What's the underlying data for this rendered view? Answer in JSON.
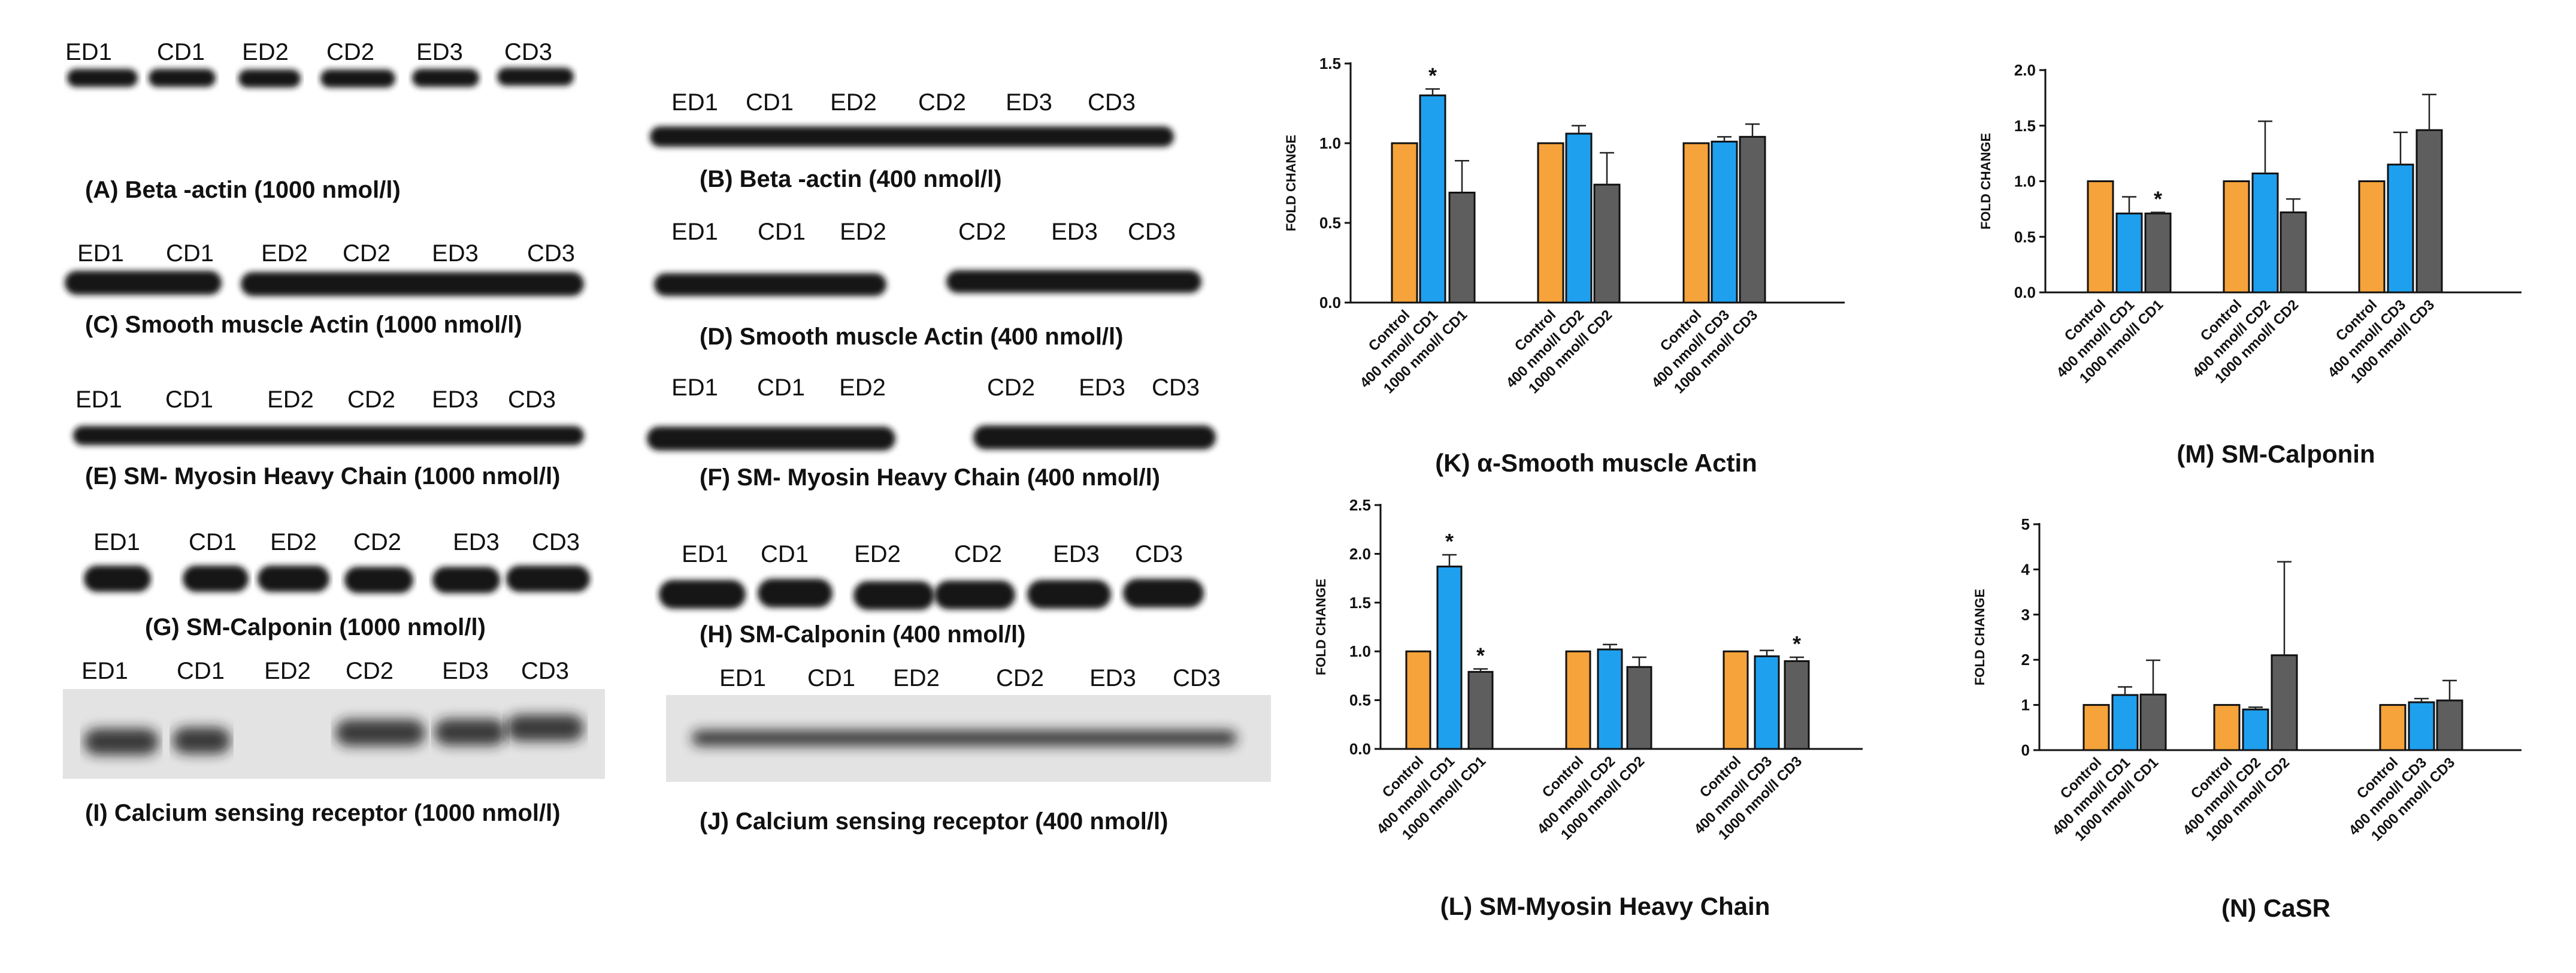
{
  "blots": [
    {
      "id": "A",
      "lanes": [
        "ED1",
        "CD1",
        "ED2",
        "CD2",
        "ED3",
        "CD3"
      ],
      "caption": "(A) Beta -actin (1000 nmol/l)",
      "band": "beta_a"
    },
    {
      "id": "B",
      "lanes": [
        "ED1",
        "CD1",
        "ED2",
        "CD2",
        "ED3",
        "CD3"
      ],
      "caption": "(B) Beta -actin (400 nmol/l)",
      "band": "beta_b"
    },
    {
      "id": "C",
      "lanes": [
        "ED1",
        "CD1",
        "ED2",
        "CD2",
        "ED3",
        "CD3"
      ],
      "caption": "(C) Smooth muscle Actin (1000 nmol/l)",
      "band": "sma_c"
    },
    {
      "id": "D",
      "lanes": [
        "ED1",
        "CD1",
        "ED2",
        "CD2",
        "ED3",
        "CD3"
      ],
      "caption": "(D) Smooth muscle Actin (400 nmol/l)",
      "band": "sma_d"
    },
    {
      "id": "E",
      "lanes": [
        "ED1",
        "CD1",
        "ED2",
        "CD2",
        "ED3",
        "CD3"
      ],
      "caption": "(E) SM- Myosin Heavy Chain (1000 nmol/l)",
      "band": "mhc_e"
    },
    {
      "id": "F",
      "lanes": [
        "ED1",
        "CD1",
        "ED2",
        "CD2",
        "ED3",
        "CD3"
      ],
      "caption": "(F) SM- Myosin Heavy Chain (400 nmol/l)",
      "band": "mhc_f"
    },
    {
      "id": "G",
      "lanes": [
        "ED1",
        "CD1",
        "ED2",
        "CD2",
        "ED3",
        "CD3"
      ],
      "caption": "(G) SM-Calponin (1000 nmol/l)",
      "band": "calp_g"
    },
    {
      "id": "H",
      "lanes": [
        "ED1",
        "CD1",
        "ED2",
        "CD2",
        "ED3",
        "CD3"
      ],
      "caption": "(H) SM-Calponin (400 nmol/l)",
      "band": "calp_h"
    },
    {
      "id": "I",
      "lanes": [
        "ED1",
        "CD1",
        "ED2",
        "CD2",
        "ED3",
        "CD3"
      ],
      "caption": "(I) Calcium sensing receptor (1000 nmol/l)",
      "band": "casr_i"
    },
    {
      "id": "J",
      "lanes": [
        "ED1",
        "CD1",
        "ED2",
        "CD2",
        "ED3",
        "CD3"
      ],
      "caption": "(J) Calcium sensing receptor (400 nmol/l)",
      "band": "casr_j"
    }
  ],
  "chart_data": [
    {
      "id": "K",
      "type": "bar",
      "title": "(K) α-Smooth muscle Actin",
      "ylabel": "FOLD CHANGE",
      "ylim": [
        0,
        1.5
      ],
      "yticks": [
        "0.0",
        "0.5",
        "1.0",
        "1.5"
      ],
      "tick_values": [
        0,
        0.5,
        1.0,
        1.5
      ],
      "categories": [
        "Control",
        "400 nmol/l CD1",
        "1000 nmol/l CD1",
        "Control",
        "400 nmol/l CD2",
        "1000 nmol/l CD2",
        "Control",
        "400 nmol/l CD3",
        "1000 nmol/l CD3"
      ],
      "values": [
        1.0,
        1.3,
        0.69,
        1.0,
        1.06,
        0.74,
        1.0,
        1.01,
        1.04
      ],
      "errors": [
        0,
        0.04,
        0.2,
        0,
        0.05,
        0.2,
        0,
        0.03,
        0.08
      ],
      "significance": [
        "",
        "*",
        "",
        "",
        "",
        "",
        "",
        "",
        ""
      ],
      "colors": [
        "#f5a33a",
        "#1ea0ef",
        "#5e5e5e"
      ]
    },
    {
      "id": "M",
      "type": "bar",
      "title": "(M) SM-Calponin",
      "ylabel": "FOLD CHANGE",
      "ylim": [
        0,
        2.0
      ],
      "yticks": [
        "0.0",
        "0.5",
        "1.0",
        "1.5",
        "2.0"
      ],
      "tick_values": [
        0,
        0.5,
        1.0,
        1.5,
        2.0
      ],
      "categories": [
        "Control",
        "400 nmol/l CD1",
        "1000 nmol/l CD1",
        "Control",
        "400 nmol/l CD2",
        "1000 nmol/l CD2",
        "Control",
        "400 nmol/l CD3",
        "1000 nmol/l CD3"
      ],
      "values": [
        1.0,
        0.71,
        0.71,
        1.0,
        1.07,
        0.72,
        1.0,
        1.15,
        1.46
      ],
      "errors": [
        0,
        0.15,
        0.01,
        0,
        0.47,
        0.12,
        0,
        0.29,
        0.32
      ],
      "significance": [
        "",
        "",
        "*",
        "",
        "",
        "",
        "",
        "",
        ""
      ],
      "colors": [
        "#f5a33a",
        "#1ea0ef",
        "#5e5e5e"
      ]
    },
    {
      "id": "L",
      "type": "bar",
      "title": "(L) SM-Myosin Heavy Chain",
      "ylabel": "FOLD CHANGE",
      "ylim": [
        0,
        2.5
      ],
      "yticks": [
        "0.0",
        "0.5",
        "1.0",
        "1.5",
        "2.0",
        "2.5"
      ],
      "tick_values": [
        0,
        0.5,
        1.0,
        1.5,
        2.0,
        2.5
      ],
      "categories": [
        "Control",
        "400 nmol/l CD1",
        "1000 nmol/l CD1",
        "Control",
        "400 nmol/l CD2",
        "1000 nmol/l CD2",
        "Control",
        "400 nmol/l CD3",
        "1000 nmol/l CD3"
      ],
      "values": [
        1.0,
        1.87,
        0.79,
        1.0,
        1.02,
        0.84,
        1.0,
        0.95,
        0.9
      ],
      "errors": [
        0,
        0.12,
        0.03,
        0,
        0.05,
        0.1,
        0,
        0.06,
        0.04
      ],
      "significance": [
        "",
        "*",
        "*",
        "",
        "",
        "",
        "",
        "",
        "*"
      ],
      "colors": [
        "#f5a33a",
        "#1ea0ef",
        "#5e5e5e"
      ]
    },
    {
      "id": "N",
      "type": "bar",
      "title": "(N) CaSR",
      "ylabel": "FOLD CHANGE",
      "ylim": [
        0,
        5
      ],
      "yticks": [
        "0",
        "1",
        "2",
        "3",
        "4",
        "5"
      ],
      "tick_values": [
        0,
        1,
        2,
        3,
        4,
        5
      ],
      "categories": [
        "Control",
        "400 nmol/l CD1",
        "1000 nmol/l CD1",
        "Control",
        "400 nmol/l CD2",
        "1000 nmol/l CD2",
        "Control",
        "400 nmol/l CD3",
        "1000 nmol/l CD3"
      ],
      "values": [
        1.0,
        1.22,
        1.23,
        1.0,
        0.9,
        2.1,
        1.0,
        1.06,
        1.1
      ],
      "errors": [
        0,
        0.18,
        0.76,
        0,
        0.05,
        2.07,
        0,
        0.08,
        0.44
      ],
      "significance": [
        "",
        "",
        "",
        "",
        "",
        "",
        "",
        "",
        ""
      ],
      "colors": [
        "#f5a33a",
        "#1ea0ef",
        "#5e5e5e"
      ]
    }
  ]
}
